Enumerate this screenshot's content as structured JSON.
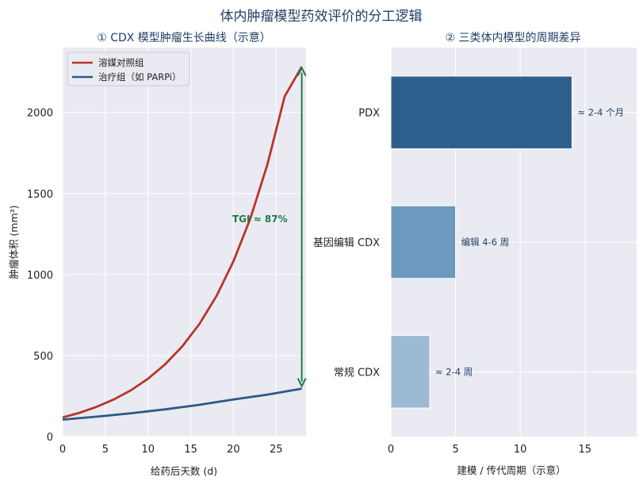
{
  "title": "体内肿瘤模型药效评价的分工逻辑",
  "chart_data": [
    {
      "type": "line",
      "title": "① CDX 模型肿瘤生长曲线（示意）",
      "xlabel": "给药后天数 (d)",
      "ylabel": "肿瘤体积 (mm³)",
      "xlim": [
        0,
        28.5
      ],
      "ylim": [
        0,
        2400
      ],
      "xticks": [
        0,
        5,
        10,
        15,
        20,
        25
      ],
      "yticks": [
        0,
        500,
        1000,
        1500,
        2000
      ],
      "grid": true,
      "legend": "top-left",
      "series": [
        {
          "name": "溶媒对照组",
          "color": "#b8352c",
          "x": [
            0,
            2,
            4,
            6,
            8,
            10,
            12,
            14,
            16,
            18,
            20,
            22,
            24,
            26,
            28
          ],
          "y": [
            118,
            147,
            184,
            229,
            286,
            357,
            446,
            556,
            694,
            866,
            1081,
            1349,
            1683,
            2100,
            2282
          ]
        },
        {
          "name": "治疗组（如 PARPi）",
          "color": "#2d5a8a",
          "x": [
            0,
            4,
            8,
            12,
            16,
            20,
            24,
            28
          ],
          "y": [
            105,
            123,
            144,
            168,
            196,
            229,
            259,
            296
          ]
        }
      ],
      "annotation": {
        "text": "TGI ≈ 87%",
        "color": "#1f7a45",
        "x": 28,
        "y_top": 2290,
        "y_bottom": 296
      }
    },
    {
      "type": "bar",
      "orientation": "horizontal",
      "title": "② 三类体内模型的周期差异",
      "xlabel": "建模 / 传代周期（示意）",
      "xlim": [
        0,
        19
      ],
      "xticks": [
        0,
        5,
        10,
        15
      ],
      "grid": true,
      "categories": [
        "常规 CDX",
        "基因编辑 CDX",
        "PDX"
      ],
      "values": [
        3,
        5,
        14
      ],
      "colors": [
        "#9dbad4",
        "#6d98bf",
        "#2d5f8d"
      ],
      "labels": [
        "≈ 2-4 周",
        "编辑 4-6 周",
        "≈ 2-4 个月"
      ]
    }
  ]
}
